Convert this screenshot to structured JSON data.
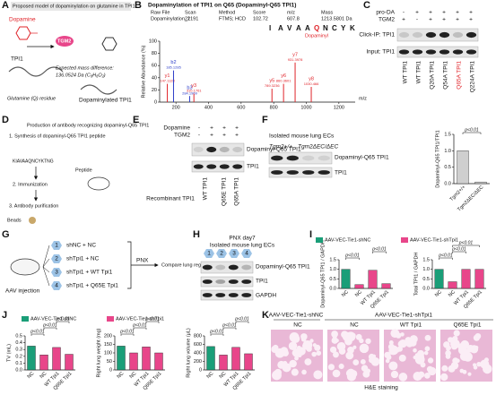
{
  "panel_labels": [
    "A",
    "B",
    "C",
    "D",
    "E",
    "F",
    "G",
    "H",
    "I",
    "J",
    "K"
  ],
  "panel_a": {
    "title": "Proposed model of dopaminylation on glutamine in TPI1",
    "dopamine": "Dopamine",
    "enzyme": "TGM2",
    "protein": "TPI1",
    "residue": "Glutamine (Q) residue",
    "diff_label": "Expected mass difference:",
    "diff_value": "136.0524 Da (C₈H₈O₂)",
    "product": "Dopaminylated TPI1"
  },
  "panel_b": {
    "title": "Dopaminylation of TPI1 on Q65 (Dopaminyl-Q65 TPI1)",
    "info": [
      [
        "Raw File",
        "Dopaminylation_1"
      ],
      [
        "Scan",
        "22191"
      ],
      [
        "Method",
        "FTMS; HCD"
      ],
      [
        "Score",
        "102.72"
      ],
      [
        "m/z",
        "607.8"
      ],
      [
        "Mass",
        "1213.5801 Da"
      ]
    ],
    "sequence": [
      "I",
      "A",
      "V",
      "A",
      "A",
      "Q",
      "N",
      "C",
      "Y",
      "K"
    ],
    "mod_label": "Dopaminyl"
  },
  "panel_c": {
    "signs": [
      {
        "label": "pro-DA",
        "values": [
          "-",
          "+",
          "+",
          "+",
          "+",
          "+"
        ]
      },
      {
        "label": "TGM2",
        "values": [
          "+",
          "-",
          "+",
          "+",
          "+",
          "+"
        ]
      }
    ],
    "blots": [
      "Click-IP: TPI1",
      "Input: TPI1"
    ],
    "lanes": [
      "WT TPI1",
      "WT TPI1",
      "Q20A TPI1",
      "Q54A TPI1",
      "Q65A TPI1",
      "Q224A TPI1"
    ],
    "lane_colors": [
      "#111111",
      "#111111",
      "#111111",
      "#111111",
      "#e0242a",
      "#111111"
    ]
  },
  "panel_d": {
    "title": "Production of antibody recognizing dopaminyl-Q65 TPI1",
    "step1": "1. Synthesis of dopaminyl-Q65 TPI1 peptide",
    "peptide_seq": "KIAVAAQNCYKTNG",
    "peptide": "Peptide",
    "step2": "2. Immunization",
    "step3": "3. Antibody purification",
    "beads": "Beads"
  },
  "panel_e": {
    "signs": [
      {
        "label": "Dopamine",
        "values": [
          "-",
          "+",
          "+",
          "+"
        ]
      },
      {
        "label": "TGM2",
        "values": [
          "-",
          "+",
          "+",
          "+"
        ]
      }
    ],
    "blots": [
      "Dopaminyl-Q65 TPI1",
      "TPI1"
    ],
    "group": "Recombinant TPI1",
    "lanes": [
      "WT TPI1",
      "Q65E TPI1",
      "Q65A TPI1"
    ]
  },
  "panel_f": {
    "title": "Isolated mouse lung ECs",
    "groups": [
      "Tgm2+/+",
      "Tgm2ΔEC/ΔEC"
    ],
    "blots": [
      "Dopaminyl-Q65 TPI1",
      "TPI1"
    ]
  },
  "panel_g": {
    "injection": "AAV injection",
    "groups": [
      {
        "n": "1",
        "label": "shNC + NC"
      },
      {
        "n": "2",
        "label": "shTpi1 + NC"
      },
      {
        "n": "3",
        "label": "shTpi1 + WT Tpi1"
      },
      {
        "n": "4",
        "label": "shTpi1 + Q65E Tpi1"
      }
    ],
    "procedure": "PNX",
    "outcome": "Compare lung regeneration"
  },
  "panel_h": {
    "title": "PNX day7",
    "subtitle": "Isolated mouse lung ECs",
    "lanes": [
      "1",
      "2",
      "3",
      "4"
    ],
    "blots": [
      "Dopaminyl-Q65 TPI1",
      "TPI1",
      "GAPDH"
    ]
  },
  "panel_k": {
    "headers": [
      "AAV-VEC-Tie1-shNC",
      "AAV-VEC-Tie1-shTpi1"
    ],
    "columns": [
      "NC",
      "NC",
      "WT Tpi1",
      "Q65E Tpi1"
    ],
    "caption": "H&E staining"
  },
  "chart_data": [
    {
      "type": "spectrum",
      "y_label": "Relative Abundance (%)",
      "x_label": "m/z",
      "xlim": [
        100,
        1300
      ],
      "xticks": [
        200,
        400,
        600,
        800,
        1000,
        1200
      ],
      "ylim": [
        0,
        100
      ],
      "yticks": [
        0,
        20,
        40,
        60,
        80,
        100
      ],
      "peaks": [
        {
          "label": "y1",
          "mz": 147.1128,
          "intensity": 30,
          "color": "#e0242a"
        },
        {
          "label": "b2",
          "mz": 185.1285,
          "intensity": 52,
          "color": "#2a3cc8"
        },
        {
          "label": "b3",
          "mz": 284.1969,
          "intensity": 10,
          "color": "#2a3cc8"
        },
        {
          "label": "y3",
          "mz": 310.1761,
          "intensity": 14,
          "color": "#e0242a"
        },
        {
          "label": "y5",
          "mz": 789.3236,
          "intensity": 22,
          "color": "#e0242a"
        },
        {
          "label": "y6",
          "mz": 860.3601,
          "intensity": 30,
          "color": "#e0242a"
        },
        {
          "label": "y7",
          "mz": 931.3978,
          "intensity": 65,
          "color": "#e0242a"
        },
        {
          "label": "y8",
          "mz": 1030.466,
          "intensity": 25,
          "color": "#e0242a"
        }
      ]
    },
    {
      "type": "bar",
      "y_label": "Dopaminyl-Q65 TPI1/TPI1",
      "categories": [
        "Tgm2+/+",
        "Tgm2ΔEC/ΔEC"
      ],
      "values": [
        1.0,
        0.05
      ],
      "color": "#cfcfcf",
      "ylim": [
        0,
        1.5
      ],
      "yticks": [
        {
          "value": 0,
          "label": "0.0"
        },
        0.5,
        {
          "value": 1,
          "label": "1.0"
        },
        1.5
      ],
      "annotations": [
        {
          "text": "p<0.01",
          "pair": [
            0,
            1
          ]
        }
      ],
      "legend": false
    },
    {
      "type": "bar",
      "y_label": "Dopaminyl-Q65 TPI1 / GAPDH",
      "categories": [
        "NC",
        "NC",
        "WT Tpi1",
        "Q65E Tpi1"
      ],
      "series": [
        {
          "name": "AAV-VEC-Tie1-shNC",
          "color": "#1a9e78",
          "values": [
            1.0,
            null,
            null,
            null
          ]
        },
        {
          "name": "AAV-VEC-Tie1-shTpi1",
          "color": "#e8468a",
          "values": [
            null,
            0.2,
            0.95,
            0.25
          ]
        }
      ],
      "ylim": [
        0,
        1.5
      ],
      "yticks": [
        {
          "value": 0,
          "label": "0.0"
        },
        0.5,
        {
          "value": 1,
          "label": "1.0"
        },
        1.5
      ],
      "annotations": [
        {
          "text": "p<0.01",
          "pair": [
            0,
            1
          ]
        },
        {
          "text": "p<0.01",
          "pair": [
            2,
            3
          ]
        }
      ],
      "legend": true
    },
    {
      "type": "bar",
      "y_label": "Total TPI1 / GAPDH",
      "categories": [
        "NC",
        "NC",
        "WT Tpi1",
        "Q65E Tpi1"
      ],
      "series": [
        {
          "name": "AAV-VEC-Tie1-shNC",
          "color": "#1a9e78",
          "values": [
            1.0,
            null,
            null,
            null
          ]
        },
        {
          "name": "AAV-VEC-Tie1-shTpi1",
          "color": "#e8468a",
          "values": [
            null,
            0.35,
            1.0,
            1.0
          ]
        }
      ],
      "ylim": [
        0,
        1.5
      ],
      "yticks": [
        {
          "value": 0,
          "label": "0.0"
        },
        0.5,
        {
          "value": 1,
          "label": "1.0"
        },
        1.5
      ],
      "annotations": [
        {
          "text": "p<0.01",
          "pair": [
            0,
            1
          ]
        },
        {
          "text": "p<0.01",
          "pair": [
            1,
            2
          ]
        },
        {
          "text": "p<0.01",
          "pair": [
            1,
            3
          ]
        }
      ],
      "legend": false
    },
    {
      "type": "bar",
      "y_label": "TV (mL)",
      "categories": [
        "NC",
        "NC",
        "WT Tpi1",
        "Q65E Tpi1"
      ],
      "series": [
        {
          "name": "AAV-VEC-Tie1-shNC",
          "color": "#1a9e78",
          "values": [
            0.35,
            null,
            null,
            null
          ]
        },
        {
          "name": "AAV-VEC-Tie1-shTpi1",
          "color": "#e8468a",
          "values": [
            null,
            0.22,
            0.33,
            0.23
          ]
        }
      ],
      "ylim": [
        0,
        0.5
      ],
      "yticks": [
        {
          "value": 0,
          "label": "0.0"
        },
        0.1,
        0.2,
        0.3,
        0.4,
        0.5
      ],
      "annotations": [
        {
          "text": "p<0.01",
          "pair": [
            0,
            1
          ]
        },
        {
          "text": "p<0.01",
          "pair": [
            1,
            2
          ]
        },
        {
          "text": "p<0.01",
          "pair": [
            2,
            3
          ]
        }
      ],
      "legend": true
    },
    {
      "type": "bar",
      "y_label": "Right lung weight (mg)",
      "categories": [
        "NC",
        "NC",
        "WT Tpi1",
        "Q65E Tpi1"
      ],
      "series": [
        {
          "name": "AAV-VEC-Tie1-shNC",
          "color": "#1a9e78",
          "values": [
            140,
            null,
            null,
            null
          ]
        },
        {
          "name": "AAV-VEC-Tie1-shTpi1",
          "color": "#e8468a",
          "values": [
            null,
            100,
            135,
            100
          ]
        }
      ],
      "ylim": [
        0,
        200
      ],
      "yticks": [
        0,
        50,
        100,
        150,
        200
      ],
      "annotations": [
        {
          "text": "p<0.01",
          "pair": [
            0,
            1
          ]
        },
        {
          "text": "p<0.01",
          "pair": [
            1,
            2
          ]
        },
        {
          "text": "p<0.01",
          "pair": [
            2,
            3
          ]
        }
      ],
      "legend": false
    },
    {
      "type": "bar",
      "y_label": "Right lung volume (μL)",
      "categories": [
        "NC",
        "NC",
        "WT Tpi1",
        "Q65E Tpi1"
      ],
      "series": [
        {
          "name": "AAV-VEC-Tie1-shNC",
          "color": "#1a9e78",
          "values": [
            550,
            null,
            null,
            null
          ]
        },
        {
          "name": "AAV-VEC-Tie1-shTpi1",
          "color": "#e8468a",
          "values": [
            null,
            350,
            530,
            380
          ]
        }
      ],
      "ylim": [
        0,
        800
      ],
      "yticks": [
        0,
        200,
        400,
        600,
        800
      ],
      "annotations": [
        {
          "text": "p<0.01",
          "pair": [
            0,
            1
          ]
        },
        {
          "text": "p<0.01",
          "pair": [
            1,
            2
          ]
        },
        {
          "text": "p<0.01",
          "pair": [
            2,
            3
          ]
        }
      ],
      "legend": false
    }
  ]
}
